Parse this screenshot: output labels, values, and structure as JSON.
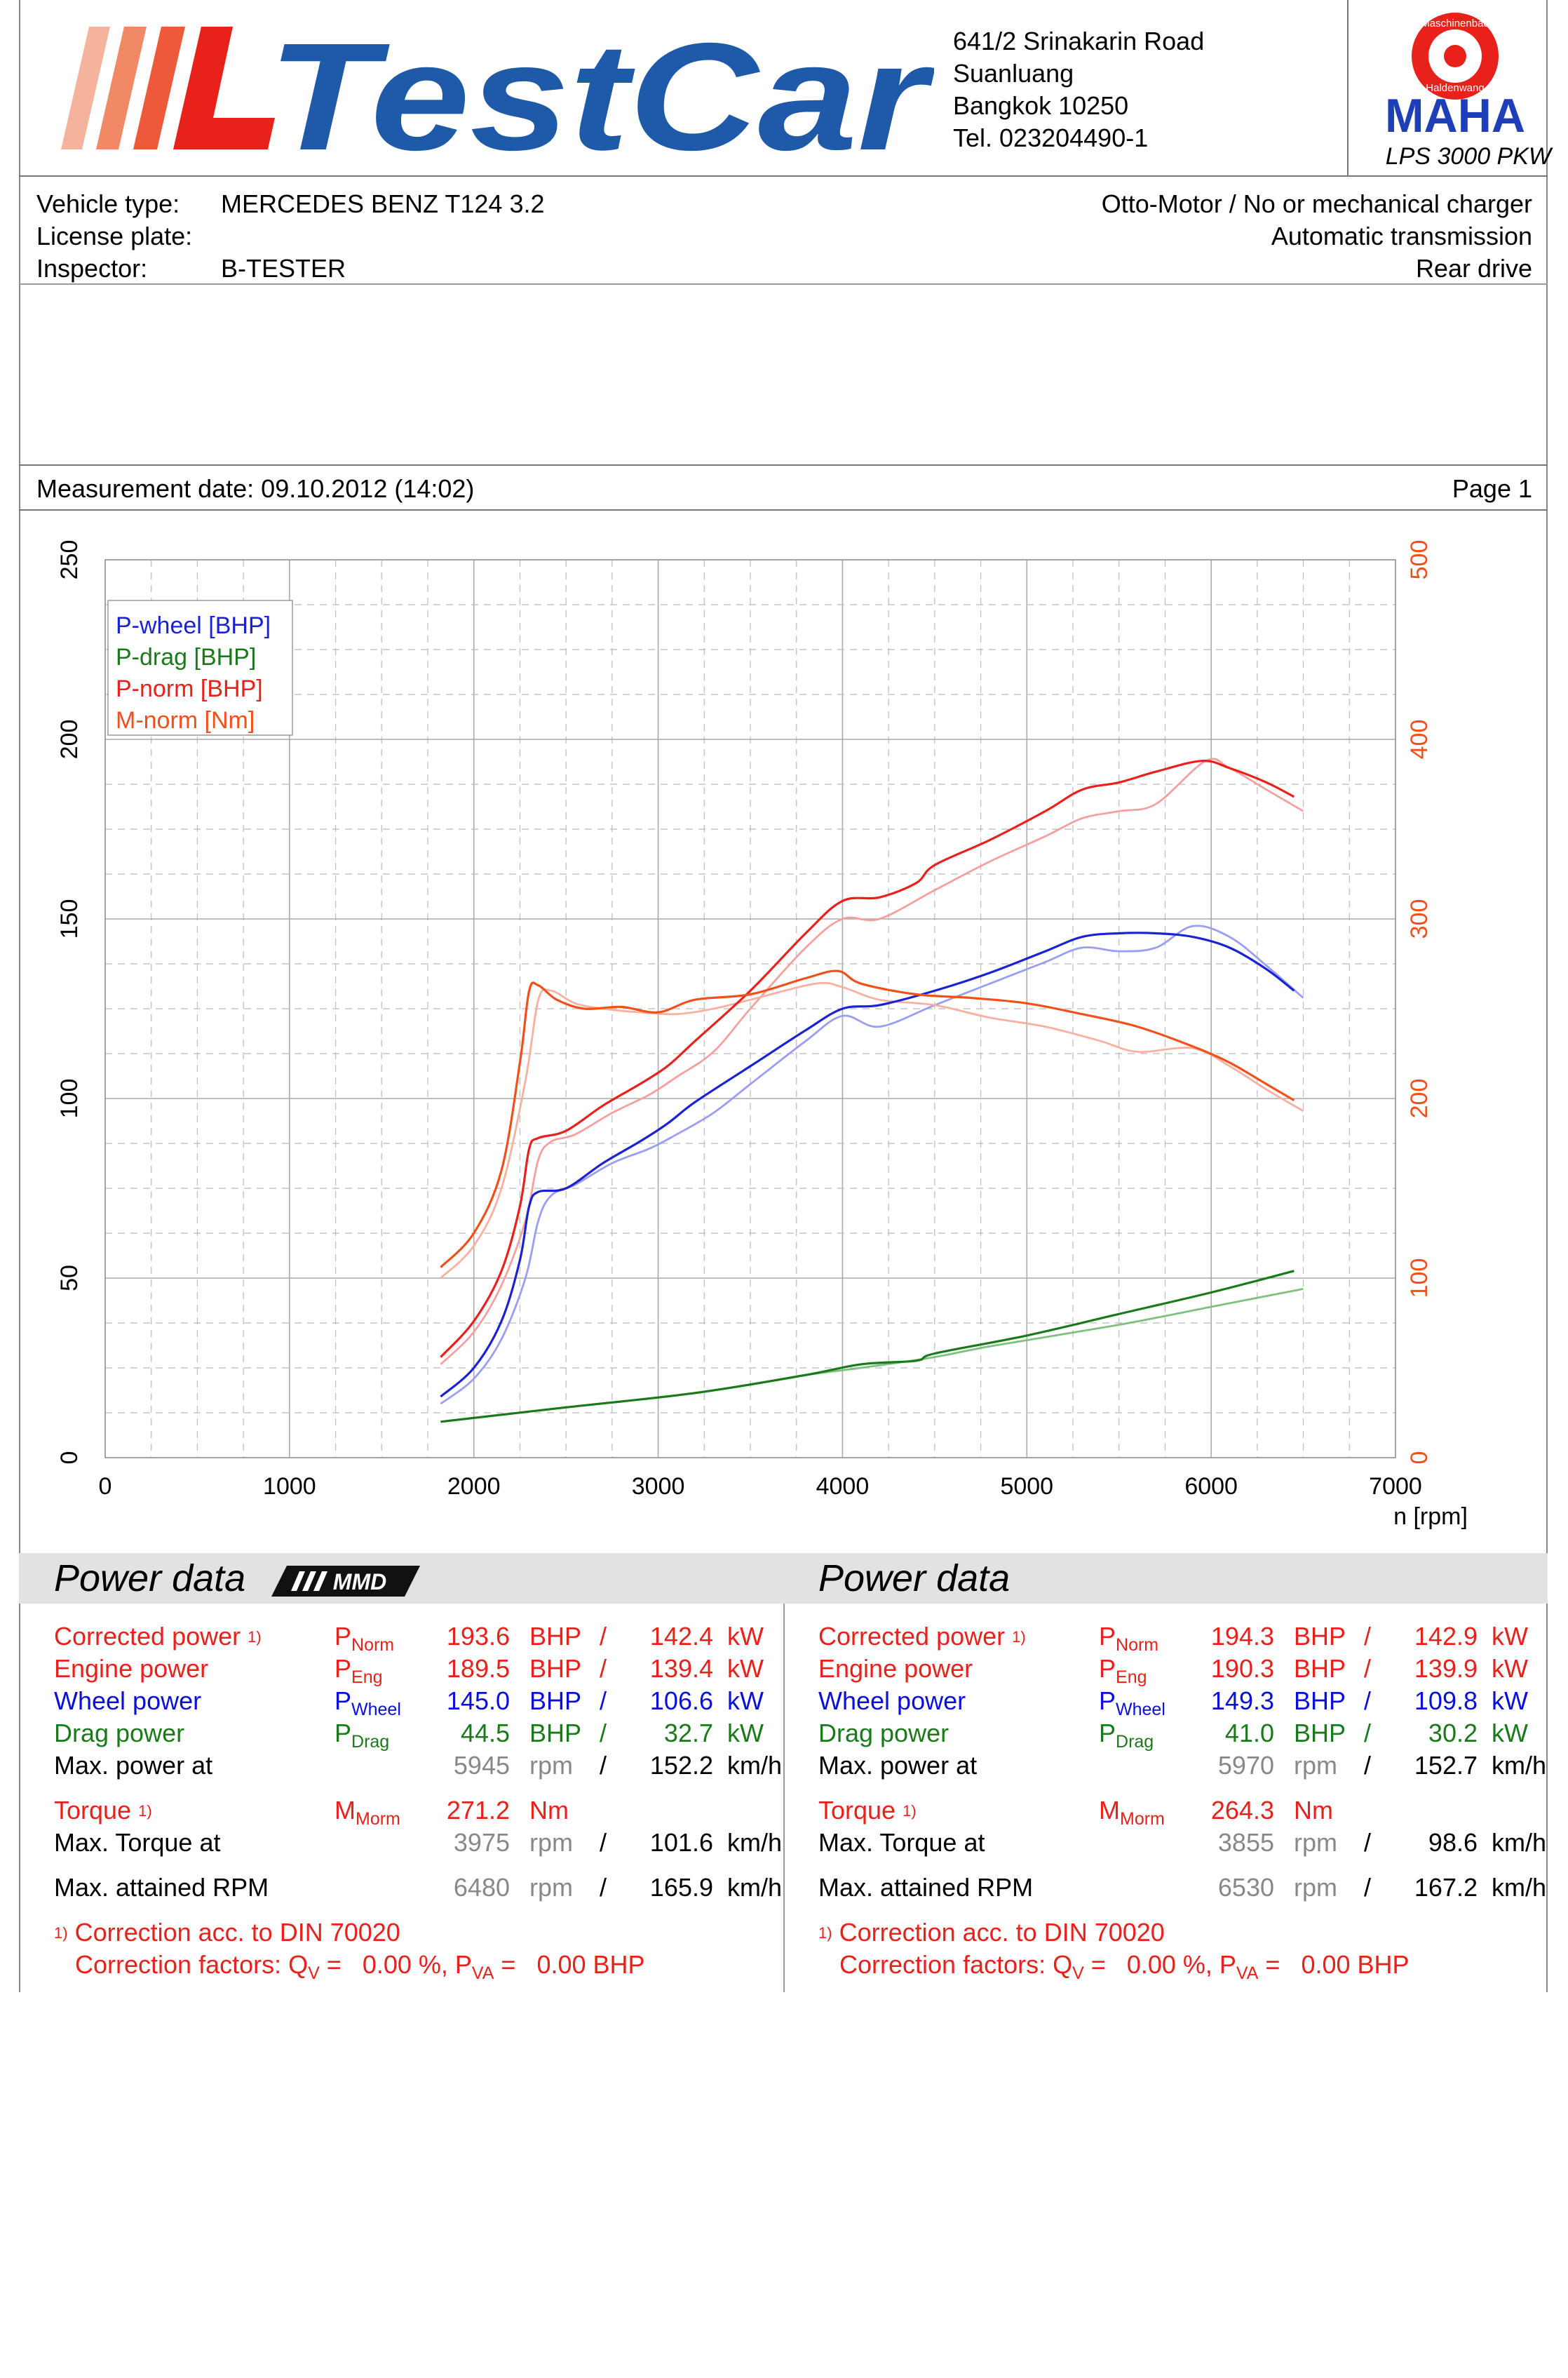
{
  "header": {
    "brand": "TestCar",
    "address": [
      "641/2 Srinakarin Road",
      "Suanluang",
      "Bangkok 10250",
      "Tel. 023204490-1"
    ],
    "maha_seal_top": "Maschinenbau",
    "maha_seal_bottom": "Haldenwang",
    "maha_brand": "MAHA",
    "device": "LPS 3000 PKW"
  },
  "vehicle": {
    "type_label": "Vehicle type:",
    "type_value": "MERCEDES BENZ T124 3.2",
    "plate_label": "License plate:",
    "plate_value": "",
    "inspector_label": "Inspector:",
    "inspector_value": "B-TESTER",
    "engine": "Otto-Motor / No or mechanical charger",
    "transmission": "Automatic transmission",
    "drive": "Rear drive"
  },
  "measurement": {
    "date_text": "Measurement date: 09.10.2012 (14:02)",
    "page": "Page 1"
  },
  "colors": {
    "p_wheel": "#1a22d4",
    "p_drag": "#1a7a1a",
    "p_norm": "#e8211b",
    "m_norm": "#f0501a",
    "axis_right": "#f0501a"
  },
  "chart_data": {
    "type": "line",
    "xlabel": "n [rpm]",
    "x_ticks": [
      0,
      1000,
      2000,
      3000,
      4000,
      5000,
      6000,
      7000
    ],
    "xlim": [
      0,
      7000
    ],
    "ylim_left": [
      0,
      250
    ],
    "y_ticks_left": [
      0,
      50,
      100,
      150,
      200,
      250
    ],
    "ylim_right": [
      0,
      500
    ],
    "y_ticks_right": [
      0,
      100,
      200,
      300,
      400,
      500
    ],
    "grid": true,
    "legend_position": "top-left",
    "legend": [
      "P-wheel [BHP]",
      "P-drag [BHP]",
      "P-norm [BHP]",
      "M-norm [Nm]"
    ],
    "series": [
      {
        "name": "P-wheel [BHP]",
        "axis": "left",
        "run": 1,
        "color": "#1a22d4",
        "x": [
          1820,
          2000,
          2150,
          2250,
          2300,
          2350,
          2500,
          2700,
          2900,
          3050,
          3200,
          3500,
          3800,
          4000,
          4200,
          4500,
          4800,
          5100,
          5300,
          5500,
          5700,
          5900,
          6100,
          6300,
          6450
        ],
        "y": [
          17,
          25,
          38,
          55,
          70,
          74,
          75,
          82,
          88,
          93,
          99,
          109,
          119,
          125,
          126,
          130,
          135,
          141,
          145,
          146,
          146,
          145,
          142,
          136,
          130
        ]
      },
      {
        "name": "P-wheel [BHP]",
        "axis": "left",
        "run": 2,
        "color": "#9a9ef0",
        "x": [
          1820,
          2000,
          2150,
          2280,
          2350,
          2420,
          2550,
          2750,
          2950,
          3100,
          3300,
          3500,
          3800,
          4000,
          4200,
          4500,
          4800,
          5100,
          5300,
          5500,
          5700,
          5900,
          6100,
          6300,
          6500
        ],
        "y": [
          15,
          22,
          33,
          50,
          66,
          73,
          76,
          82,
          86,
          90,
          96,
          104,
          116,
          123,
          120,
          126,
          132,
          138,
          142,
          141,
          142,
          148,
          145,
          137,
          128
        ]
      },
      {
        "name": "P-drag [BHP]",
        "axis": "left",
        "run": 1,
        "color": "#1a7a1a",
        "x": [
          1820,
          2500,
          3200,
          3800,
          4100,
          4400,
          4500,
          5000,
          5500,
          6000,
          6450
        ],
        "y": [
          10,
          14,
          18,
          23,
          26,
          27,
          29,
          34,
          40,
          46,
          52
        ]
      },
      {
        "name": "P-drag [BHP]",
        "axis": "left",
        "run": 2,
        "color": "#7fbf7f",
        "x": [
          1820,
          2500,
          3200,
          3800,
          4100,
          4500,
          4800,
          5500,
          6000,
          6500
        ],
        "y": [
          10,
          14,
          18,
          23,
          25,
          28,
          31,
          37,
          42,
          47
        ]
      },
      {
        "name": "P-norm [BHP]",
        "axis": "left",
        "run": 1,
        "color": "#e8211b",
        "x": [
          1820,
          2000,
          2150,
          2250,
          2300,
          2350,
          2500,
          2700,
          2900,
          3050,
          3200,
          3500,
          3800,
          4000,
          4200,
          4400,
          4500,
          4800,
          5100,
          5300,
          5500,
          5700,
          5950,
          6100,
          6300,
          6450
        ],
        "y": [
          28,
          38,
          52,
          70,
          86,
          89,
          91,
          98,
          104,
          109,
          116,
          130,
          146,
          155,
          156,
          160,
          165,
          172,
          180,
          186,
          188,
          191,
          194,
          192,
          188,
          184
        ]
      },
      {
        "name": "P-norm [BHP]",
        "axis": "left",
        "run": 2,
        "color": "#f4a0a0",
        "x": [
          1820,
          2000,
          2150,
          2280,
          2350,
          2420,
          2550,
          2750,
          2950,
          3100,
          3300,
          3500,
          3800,
          4000,
          4200,
          4500,
          4800,
          5100,
          5300,
          5500,
          5700,
          5970,
          6100,
          6300,
          6500
        ],
        "y": [
          26,
          35,
          48,
          66,
          83,
          88,
          90,
          96,
          101,
          106,
          113,
          125,
          142,
          150,
          150,
          158,
          166,
          173,
          178,
          180,
          182,
          194,
          192,
          186,
          180
        ]
      },
      {
        "name": "M-norm [Nm]",
        "axis": "right",
        "run": 1,
        "color": "#f0501a",
        "x": [
          1820,
          2000,
          2150,
          2250,
          2300,
          2350,
          2450,
          2600,
          2800,
          3000,
          3200,
          3500,
          3800,
          3975,
          4100,
          4400,
          4700,
          5000,
          5300,
          5600,
          5900,
          6100,
          6300,
          6450
        ],
        "y": [
          106,
          125,
          160,
          220,
          260,
          263,
          255,
          250,
          251,
          248,
          255,
          258,
          267,
          271,
          264,
          258,
          256,
          253,
          247,
          240,
          229,
          220,
          208,
          199
        ]
      },
      {
        "name": "M-norm [Nm]",
        "axis": "right",
        "run": 2,
        "color": "#f8b0a0",
        "x": [
          1820,
          2000,
          2150,
          2280,
          2350,
          2420,
          2550,
          2700,
          2900,
          3100,
          3300,
          3500,
          3855,
          4000,
          4200,
          4500,
          4800,
          5100,
          5400,
          5600,
          5900,
          6100,
          6300,
          6500
        ],
        "y": [
          100,
          118,
          150,
          210,
          255,
          260,
          253,
          250,
          248,
          247,
          250,
          255,
          264,
          262,
          255,
          252,
          245,
          240,
          232,
          226,
          228,
          218,
          205,
          193
        ]
      }
    ]
  },
  "power_left": {
    "title": "Power data",
    "rows": [
      {
        "label": "Corrected power",
        "mark": "1)",
        "sym": "P",
        "sub": "Norm",
        "v1": "193.6",
        "u1": "BHP",
        "sep": "/",
        "v2": "142.4",
        "u2": "kW",
        "color": "red"
      },
      {
        "label": "Engine power",
        "mark": "",
        "sym": "P",
        "sub": "Eng",
        "v1": "189.5",
        "u1": "BHP",
        "sep": "/",
        "v2": "139.4",
        "u2": "kW",
        "color": "red"
      },
      {
        "label": "Wheel power",
        "mark": "",
        "sym": "P",
        "sub": "Wheel",
        "v1": "145.0",
        "u1": "BHP",
        "sep": "/",
        "v2": "106.6",
        "u2": "kW",
        "color": "blue"
      },
      {
        "label": "Drag power",
        "mark": "",
        "sym": "P",
        "sub": "Drag",
        "v1": "44.5",
        "u1": "BHP",
        "sep": "/",
        "v2": "32.7",
        "u2": "kW",
        "color": "green"
      }
    ],
    "maxpower_label": "Max. power at",
    "maxpower_rpm": "5945",
    "maxpower_speed": "152.2",
    "torque_label": "Torque",
    "torque_mark": "1)",
    "torque_sym": "M",
    "torque_sub": "Morm",
    "torque_value": "271.2",
    "torque_unit": "Nm",
    "maxtorque_label": "Max. Torque at",
    "maxtorque_rpm": "3975",
    "maxtorque_speed": "101.6",
    "maxrpm_label": "Max. attained RPM",
    "maxrpm_rpm": "6480",
    "maxrpm_speed": "165.9",
    "rpm_unit": "rpm",
    "speed_unit": "km/h",
    "slash": "/",
    "footnote_mark": "1)",
    "footnote1": "Correction acc. to DIN 70020",
    "footnote2_a": "Correction factors: Q",
    "footnote2_b": "V",
    "footnote2_c": " =   0.00 %, P",
    "footnote2_d": "VA",
    "footnote2_e": " =   0.00 BHP"
  },
  "power_right": {
    "title": "Power data",
    "rows": [
      {
        "label": "Corrected power",
        "mark": "1)",
        "sym": "P",
        "sub": "Norm",
        "v1": "194.3",
        "u1": "BHP",
        "sep": "/",
        "v2": "142.9",
        "u2": "kW",
        "color": "red"
      },
      {
        "label": "Engine power",
        "mark": "",
        "sym": "P",
        "sub": "Eng",
        "v1": "190.3",
        "u1": "BHP",
        "sep": "/",
        "v2": "139.9",
        "u2": "kW",
        "color": "red"
      },
      {
        "label": "Wheel power",
        "mark": "",
        "sym": "P",
        "sub": "Wheel",
        "v1": "149.3",
        "u1": "BHP",
        "sep": "/",
        "v2": "109.8",
        "u2": "kW",
        "color": "blue"
      },
      {
        "label": "Drag power",
        "mark": "",
        "sym": "P",
        "sub": "Drag",
        "v1": "41.0",
        "u1": "BHP",
        "sep": "/",
        "v2": "30.2",
        "u2": "kW",
        "color": "green"
      }
    ],
    "maxpower_label": "Max. power at",
    "maxpower_rpm": "5970",
    "maxpower_speed": "152.7",
    "torque_label": "Torque",
    "torque_mark": "1)",
    "torque_sym": "M",
    "torque_sub": "Morm",
    "torque_value": "264.3",
    "torque_unit": "Nm",
    "maxtorque_label": "Max. Torque at",
    "maxtorque_rpm": "3855",
    "maxtorque_speed": "98.6",
    "maxrpm_label": "Max. attained RPM",
    "maxrpm_rpm": "6530",
    "maxrpm_speed": "167.2",
    "rpm_unit": "rpm",
    "speed_unit": "km/h",
    "slash": "/",
    "footnote_mark": "1)",
    "footnote1": "Correction acc. to DIN 70020",
    "footnote2_a": "Correction factors: Q",
    "footnote2_b": "V",
    "footnote2_c": " =   0.00 %, P",
    "footnote2_d": "VA",
    "footnote2_e": " =   0.00 BHP"
  },
  "mmd_badge": "MMD"
}
